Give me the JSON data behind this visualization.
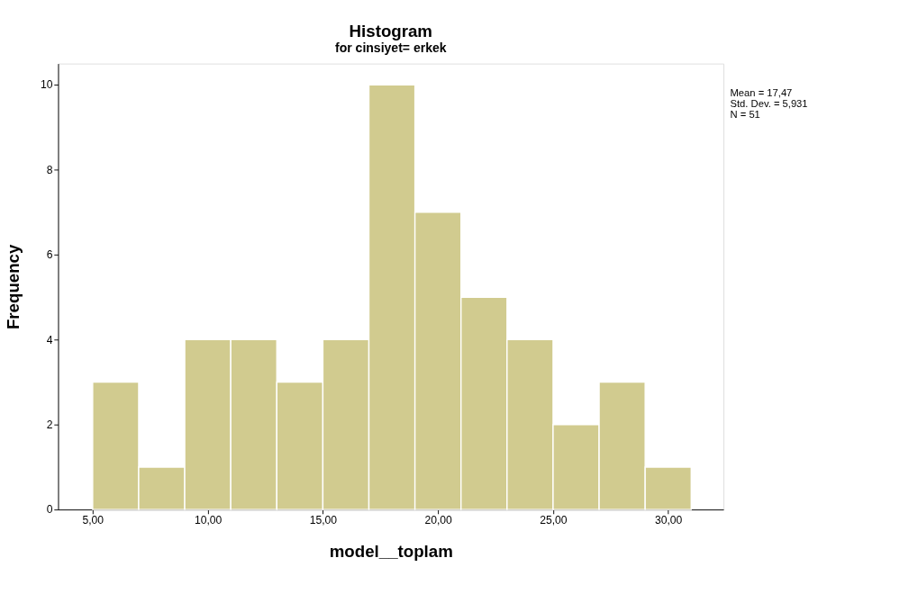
{
  "chart_data": {
    "type": "histogram",
    "title": "Histogram",
    "subtitle": "for cinsiyet= erkek",
    "xlabel": "model__toplam",
    "ylabel": "Frequency",
    "bins": [
      5,
      7,
      9,
      11,
      13,
      15,
      17,
      19,
      21,
      23,
      25,
      27,
      29,
      31
    ],
    "values": [
      3,
      1,
      4,
      4,
      3,
      4,
      10,
      7,
      5,
      4,
      2,
      3,
      1
    ],
    "color": "#d1cb8f",
    "xlim": [
      3.5,
      32.4
    ],
    "ylim": [
      0,
      10.5
    ],
    "xticks": [
      {
        "value": 5,
        "label": "5,00"
      },
      {
        "value": 10,
        "label": "10,00"
      },
      {
        "value": 15,
        "label": "15,00"
      },
      {
        "value": 20,
        "label": "20,00"
      },
      {
        "value": 25,
        "label": "25,00"
      },
      {
        "value": 30,
        "label": "30,00"
      }
    ],
    "yticks": [
      0,
      2,
      4,
      6,
      8,
      10
    ],
    "grid": false,
    "annotations": [
      "Mean = 17,47",
      "Std. Dev. = 5,931",
      "N = 51"
    ]
  }
}
